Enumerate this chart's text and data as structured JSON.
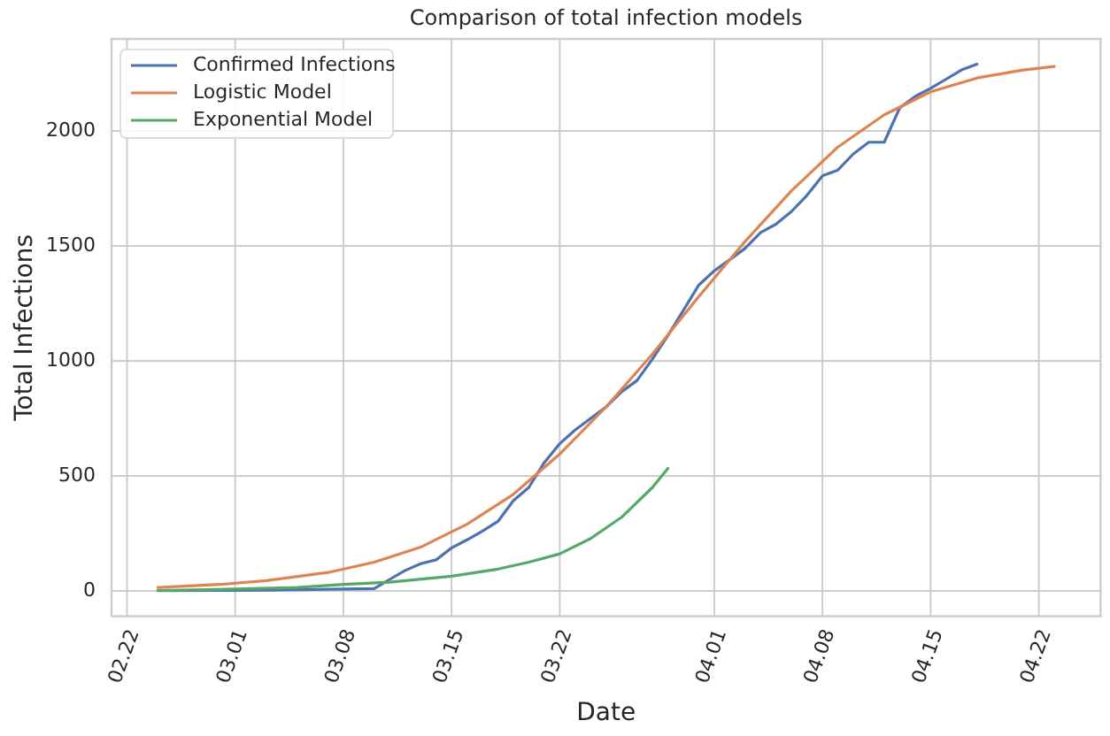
{
  "chart_data": {
    "type": "line",
    "title": "Comparison of total infection models",
    "xlabel": "Date",
    "ylabel": "Total Infections",
    "xlim": [
      "--02-21",
      "--04-26"
    ],
    "ylim": [
      -110,
      2400
    ],
    "xticks": [
      {
        "value": "--02-22",
        "label": "02.22"
      },
      {
        "value": "--03-01",
        "label": "03.01"
      },
      {
        "value": "--03-08",
        "label": "03.08"
      },
      {
        "value": "--03-15",
        "label": "03.15"
      },
      {
        "value": "--03-22",
        "label": "03.22"
      },
      {
        "value": "--04-01",
        "label": "04.01"
      },
      {
        "value": "--04-08",
        "label": "04.08"
      },
      {
        "value": "--04-15",
        "label": "04.15"
      },
      {
        "value": "--04-22",
        "label": "04.22"
      }
    ],
    "yticks": [
      0,
      500,
      1000,
      1500,
      2000
    ],
    "grid": true,
    "legend": "top left",
    "line_style": "solid",
    "marker": "none",
    "series": [
      {
        "name": "Confirmed Infections",
        "color": "#4c72b0",
        "x": [
          "--02-24",
          "--02-28",
          "--03-03",
          "--03-06",
          "--03-09",
          "--03-10",
          "--03-11",
          "--03-12",
          "--03-13",
          "--03-14",
          "--03-15",
          "--03-16",
          "--03-17",
          "--03-18",
          "--03-19",
          "--03-20",
          "--03-21",
          "--03-22",
          "--03-23",
          "--03-24",
          "--03-25",
          "--03-26",
          "--03-27",
          "--03-28",
          "--03-29",
          "--03-30",
          "--03-31",
          "--04-01",
          "--04-02",
          "--04-03",
          "--04-04",
          "--04-05",
          "--04-06",
          "--04-07",
          "--04-08",
          "--04-09",
          "--04-10",
          "--04-11",
          "--04-12",
          "--04-13",
          "--04-14",
          "--04-15",
          "--04-16",
          "--04-17",
          "--04-18"
        ],
        "values": [
          1,
          2,
          3,
          6,
          9,
          10,
          50,
          89,
          118,
          135,
          187,
          222,
          260,
          302,
          392,
          450,
          558,
          640,
          700,
          750,
          800,
          866,
          915,
          1008,
          1110,
          1220,
          1330,
          1392,
          1440,
          1490,
          1558,
          1595,
          1650,
          1720,
          1805,
          1830,
          1900,
          1951,
          1951,
          2100,
          2150,
          2185,
          2225,
          2265,
          2290
        ]
      },
      {
        "name": "Logistic Model",
        "color": "#dd8452",
        "x": [
          "--02-24",
          "--02-28",
          "--03-03",
          "--03-07",
          "--03-10",
          "--03-13",
          "--03-16",
          "--03-19",
          "--03-22",
          "--03-25",
          "--03-28",
          "--03-31",
          "--04-03",
          "--04-06",
          "--04-09",
          "--04-12",
          "--04-15",
          "--04-18",
          "--04-21",
          "--04-23"
        ],
        "values": [
          15,
          28,
          45,
          80,
          125,
          190,
          290,
          420,
          595,
          800,
          1030,
          1280,
          1520,
          1740,
          1930,
          2070,
          2170,
          2230,
          2265,
          2280
        ]
      },
      {
        "name": "Exponential Model",
        "color": "#55a868",
        "x": [
          "--02-24",
          "--03-01",
          "--03-05",
          "--03-08",
          "--03-11",
          "--03-15",
          "--03-18",
          "--03-20",
          "--03-22",
          "--03-24",
          "--03-26",
          "--03-28",
          "--03-29"
        ],
        "values": [
          2,
          8,
          15,
          28,
          38,
          64,
          95,
          125,
          161,
          228,
          320,
          450,
          533
        ]
      }
    ]
  }
}
